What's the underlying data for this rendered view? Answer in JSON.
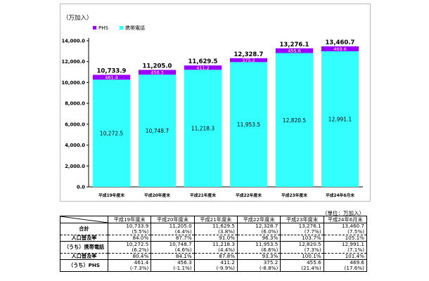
{
  "chart_data": {
    "type": "bar",
    "stacked": true,
    "categories": [
      "平成19年度末",
      "平成20年度末",
      "平成21年度末",
      "平成22年度末",
      "平成23年度末",
      "平成24年6月末"
    ],
    "series": [
      {
        "name": "携帯電話",
        "values": [
          10272.5,
          10748.7,
          11218.3,
          11953.5,
          12820.5,
          12991.1
        ],
        "color": "#33FFFF"
      },
      {
        "name": "PHS",
        "values": [
          461.4,
          456.3,
          411.2,
          375.2,
          455.6,
          469.6
        ],
        "color": "#9900FF"
      }
    ],
    "totals": [
      "10,733.9",
      "11,205.0",
      "11,629.5",
      "12,328.7",
      "13,276.1",
      "13,460.7"
    ],
    "mobile_labels": [
      "10,272.5",
      "10,748.7",
      "11,218.3",
      "11,953.5",
      "12,820.5",
      "12,991.1"
    ],
    "phs_labels": [
      "461.4",
      "456.3",
      "411.2",
      "375.2",
      "455.6",
      "469.6"
    ],
    "y_unit": "（万加入）",
    "yticks": [
      "0.0",
      "2,000.0",
      "4,000.0",
      "6,000.0",
      "8,000.0",
      "10,000.0",
      "12,000.0",
      "14,000.0"
    ],
    "ylim": [
      0,
      14000
    ],
    "legend_position": "top-left",
    "grid": false
  },
  "table": {
    "unit": "（単位：万加入）",
    "headers": [
      "平成19年度末",
      "平成20年度末",
      "平成21年度末",
      "平成22年度末",
      "平成23年度末",
      "平成24年6月末"
    ],
    "rows": [
      {
        "label": "合計",
        "values": [
          "10,733.9",
          "11,205.0",
          "11,629.5",
          "12,328.7",
          "13,276.1",
          "13,460.7"
        ],
        "growth": [
          "(5.5%)",
          "(4.4%)",
          "(3.8%)",
          "(6.0%)",
          "(7.7%)",
          "(7.5%)"
        ]
      },
      {
        "label": "人口普及率",
        "values": [
          "84.0%",
          "87.7%",
          "91.0%",
          "96.3%",
          "103.7%",
          "105.1%"
        ]
      },
      {
        "label": "（うち）携帯電話",
        "values": [
          "10,272.5",
          "10,748.7",
          "11,218.3",
          "11,953.5",
          "12,820.5",
          "12,991.1"
        ],
        "growth": [
          "(6.2%)",
          "(4.6%)",
          "(4.4%)",
          "(6.6%)",
          "(7.3%)",
          "(7.1%)"
        ]
      },
      {
        "label": "人口普及率",
        "values": [
          "80.4%",
          "84.1%",
          "87.8%",
          "93.3%",
          "100.1%",
          "101.4%"
        ]
      },
      {
        "label": "（うち）PHS",
        "values": [
          "461.4",
          "456.3",
          "411.2",
          "375.2",
          "455.6",
          "469.6"
        ],
        "growth": [
          "(-7.3%)",
          "(-1.1%)",
          "(-9.9%)",
          "(-8.8%)",
          "(21.4%)",
          "(17.6%)"
        ]
      }
    ]
  }
}
